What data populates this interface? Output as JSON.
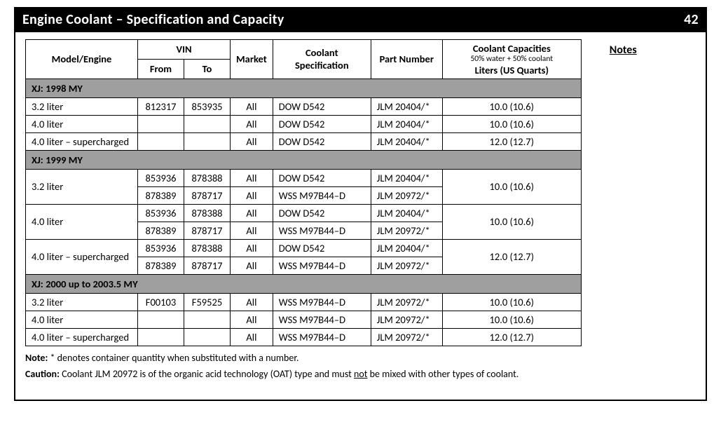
{
  "header": {
    "title": "Engine Coolant – Specification and Capacity",
    "page_number": "42"
  },
  "sidebar": {
    "notes_link": "Notes"
  },
  "table": {
    "columns": {
      "model": "Model/Engine",
      "vin": "VIN",
      "vin_from": "From",
      "vin_to": "To",
      "market": "Market",
      "spec": "Coolant Specification",
      "part": "Part Number",
      "cap_title": "Coolant Capacities",
      "cap_sub": "50% water + 50% coolant",
      "cap_units": "Liters (US Quarts)"
    },
    "sections": [
      {
        "label": "XJ: 1998 MY",
        "rows": [
          {
            "model": "3.2 liter",
            "vin_from": "812317",
            "vin_to": "853935",
            "market": "All",
            "spec": "DOW D542",
            "part": "JLM 20404/*",
            "cap": "10.0 (10.6)"
          },
          {
            "model": "4.0 liter",
            "vin_from": "",
            "vin_to": "",
            "market": "All",
            "spec": "DOW D542",
            "part": "JLM 20404/*",
            "cap": "10.0 (10.6)"
          },
          {
            "model": "4.0 liter – supercharged",
            "vin_from": "",
            "vin_to": "",
            "market": "All",
            "spec": "DOW D542",
            "part": "JLM 20404/*",
            "cap": "12.0 (12.7)"
          }
        ]
      },
      {
        "label": "XJ: 1999 MY",
        "grouped_rows": [
          {
            "model": "3.2 liter",
            "cap": "10.0 (10.6)",
            "lines": [
              {
                "vin_from": "853936",
                "vin_to": "878388",
                "market": "All",
                "spec": "DOW D542",
                "part": "JLM 20404/*"
              },
              {
                "vin_from": "878389",
                "vin_to": "878717",
                "market": "All",
                "spec": "WSS M97B44–D",
                "part": "JLM 20972/*"
              }
            ]
          },
          {
            "model": "4.0 liter",
            "cap": "10.0 (10.6)",
            "lines": [
              {
                "vin_from": "853936",
                "vin_to": "878388",
                "market": "All",
                "spec": "DOW D542",
                "part": "JLM 20404/*"
              },
              {
                "vin_from": "878389",
                "vin_to": "878717",
                "market": "All",
                "spec": "WSS M97B44–D",
                "part": "JLM 20972/*"
              }
            ]
          },
          {
            "model": "4.0 liter – supercharged",
            "cap": "12.0 (12.7)",
            "lines": [
              {
                "vin_from": "853936",
                "vin_to": "878388",
                "market": "All",
                "spec": "DOW D542",
                "part": "JLM 20404/*"
              },
              {
                "vin_from": "878389",
                "vin_to": "878717",
                "market": "All",
                "spec": "WSS M97B44–D",
                "part": "JLM 20972/*"
              }
            ]
          }
        ]
      },
      {
        "label": "XJ: 2000 up to 2003.5 MY",
        "rows": [
          {
            "model": "3.2 liter",
            "vin_from": "F00103",
            "vin_to": "F59525",
            "market": "All",
            "spec": "WSS M97B44–D",
            "part": "JLM 20972/*",
            "cap": "10.0 (10.6)"
          },
          {
            "model": "4.0 liter",
            "vin_from": "",
            "vin_to": "",
            "market": "All",
            "spec": "WSS M97B44–D",
            "part": "JLM 20972/*",
            "cap": "10.0 (10.6)"
          },
          {
            "model": "4.0 liter – supercharged",
            "vin_from": "",
            "vin_to": "",
            "market": "All",
            "spec": "WSS M97B44–D",
            "part": "JLM 20972/*",
            "cap": "12.0 (12.7)"
          }
        ]
      }
    ]
  },
  "footnotes": {
    "note_label": "Note:",
    "note_text": " * denotes container quantity when substituted with a number.",
    "caution_label": "Caution:",
    "caution_pre": "  Coolant JLM 20972 is of the organic acid technology (OAT) type and must ",
    "caution_not": "not",
    "caution_post": " be mixed with other types of coolant."
  }
}
